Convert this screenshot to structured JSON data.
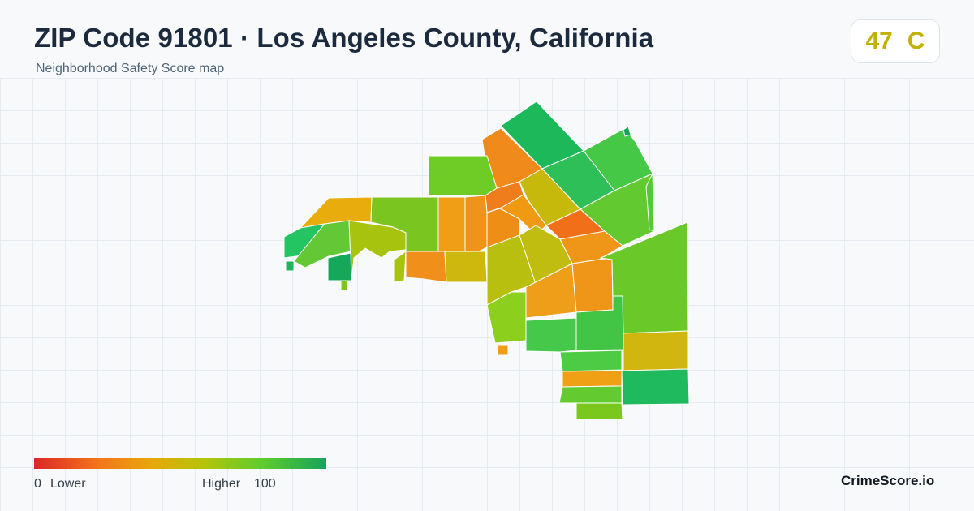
{
  "header": {
    "title": "ZIP Code 91801 · Los Angeles County, California",
    "subtitle": "Neighborhood Safety Score map"
  },
  "score": {
    "value": "47",
    "grade": "C",
    "color": "#c2b100"
  },
  "legend": {
    "min_label": "0",
    "low_label": "Lower",
    "high_label": "Higher",
    "max_label": "100",
    "colors": [
      "#dc2626",
      "#f3751b",
      "#e8a70c",
      "#b5c40a",
      "#5fcc2e",
      "#16a35a"
    ]
  },
  "brand": "CrimeScore.io",
  "map": {
    "scale": "safety score 0–100",
    "regions": [
      {
        "name": "region-northeast-top",
        "score": 85
      },
      {
        "name": "region-north-orange",
        "score": 30
      },
      {
        "name": "region-north-green",
        "score": 76
      },
      {
        "name": "region-east-top",
        "score": 78
      },
      {
        "name": "region-east-upper",
        "score": 74
      },
      {
        "name": "region-central-north-orange",
        "score": 28
      },
      {
        "name": "region-central-olive",
        "score": 55
      },
      {
        "name": "region-central-orange",
        "score": 34
      },
      {
        "name": "region-central-red-orange",
        "score": 22
      },
      {
        "name": "region-west-yellow",
        "score": 42
      },
      {
        "name": "region-west-green",
        "score": 70
      },
      {
        "name": "region-west-orange-strip",
        "score": 33
      },
      {
        "name": "region-west-orange-strip-2",
        "score": 32
      },
      {
        "name": "region-far-west-green",
        "score": 82
      },
      {
        "name": "region-far-west-green-2",
        "score": 76
      },
      {
        "name": "region-far-west-olive",
        "score": 58
      },
      {
        "name": "region-far-west-dark-green",
        "score": 90
      },
      {
        "name": "region-central-orange-east",
        "score": 31
      },
      {
        "name": "region-east-large-green",
        "score": 70
      },
      {
        "name": "region-center-olive",
        "score": 56
      },
      {
        "name": "region-center-olive-2",
        "score": 55
      },
      {
        "name": "region-center-orange",
        "score": 30
      },
      {
        "name": "region-south-green",
        "score": 73
      },
      {
        "name": "region-south-yellow",
        "score": 50
      },
      {
        "name": "region-south-bottom-green",
        "score": 86
      },
      {
        "name": "region-south-stripes",
        "score": 72
      }
    ]
  }
}
